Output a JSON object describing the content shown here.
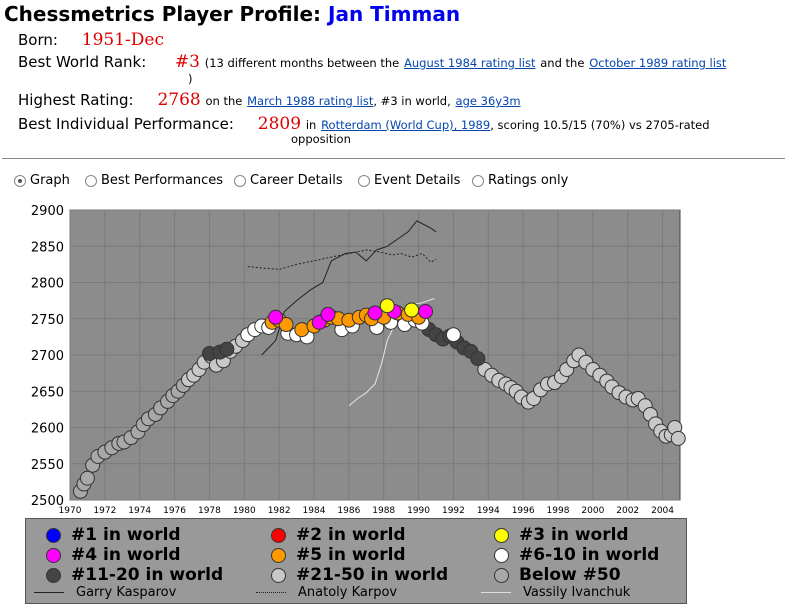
{
  "header": {
    "title_prefix": "Chessmetrics Player Profile:",
    "player_name": "Jan Timman"
  },
  "profile": {
    "born_label": "Born:",
    "born_value": "1951-Dec",
    "rank_label": "Best World Rank:",
    "rank_value": "#3",
    "rank_text1": "(13 different months between the",
    "rank_link1": "August 1984 rating list",
    "rank_text2": "and the",
    "rank_link2": "October 1989 rating list",
    "rank_text3": ")",
    "rating_label": "Highest Rating:",
    "rating_value": "2768",
    "rating_text1": "on the",
    "rating_link1": "March 1988 rating list",
    "rating_text2": ", #3 in world,",
    "rating_link2": "age 36y3m",
    "perf_label": "Best Individual Performance:",
    "perf_value": "2809",
    "perf_text1": "in",
    "perf_link1": "Rotterdam (World Cup), 1989",
    "perf_text2": ", scoring 10.5/15 (70%) vs 2705-rated",
    "perf_text3": "opposition"
  },
  "tabs": {
    "graph": "Graph",
    "best": "Best Performances",
    "career": "Career Details",
    "event": "Event Details",
    "ratings": "Ratings only",
    "selected": "Graph"
  },
  "colors": {
    "plot_bg": "#8c8c8c",
    "rank1": "#0000ff",
    "rank2": "#ff0000",
    "rank3": "#ffff00",
    "rank4": "#ff00ff",
    "rank5": "#ff9900",
    "rank6_10": "#ffffff",
    "rank11_20": "#444444",
    "rank21_50": "#c8c8c8",
    "below50": "#a8a8a8"
  },
  "legend": {
    "r1": "#1 in world",
    "r2": "#2 in world",
    "r3": "#3 in world",
    "r4": "#4 in world",
    "r5": "#5 in world",
    "r6": "#6-10 in world",
    "r11": "#11-20 in world",
    "r21": "#21-50 in world",
    "rb": "Below #50",
    "kasparov": "Garry Kasparov",
    "karpov": "Anatoly Karpov",
    "ivanchuk": "Vassily Ivanchuk"
  },
  "chart_data": {
    "type": "scatter",
    "xlim": [
      1970,
      2005
    ],
    "ylim": [
      2500,
      2900
    ],
    "x_ticks": [
      "1970",
      "1972",
      "1974",
      "1976",
      "1978",
      "1980",
      "1982",
      "1984",
      "1986",
      "1988",
      "1990",
      "1992",
      "1994",
      "1996",
      "1998",
      "2000",
      "2002",
      "2004"
    ],
    "y_ticks": [
      "2500",
      "2550",
      "2600",
      "2650",
      "2700",
      "2750",
      "2800",
      "2850",
      "2900"
    ],
    "grid": true,
    "series": [
      {
        "name": "Below #50",
        "color": "#a8a8a8",
        "points": [
          [
            1970.6,
            2512
          ],
          [
            1970.8,
            2522
          ],
          [
            1971.0,
            2530
          ],
          [
            1971.3,
            2548
          ],
          [
            1971.6,
            2560
          ],
          [
            1972.0,
            2566
          ],
          [
            1972.4,
            2572
          ],
          [
            1972.8,
            2578
          ],
          [
            1973.1,
            2580
          ],
          [
            1973.5,
            2586
          ],
          [
            1973.9,
            2594
          ],
          [
            1974.2,
            2604
          ],
          [
            1974.5,
            2612
          ],
          [
            1974.9,
            2618
          ],
          [
            1975.2,
            2627
          ],
          [
            1975.6,
            2636
          ],
          [
            1975.9,
            2644
          ],
          [
            1976.2,
            2650
          ],
          [
            1976.5,
            2658
          ]
        ]
      },
      {
        "name": "#21-50 in world",
        "color": "#c8c8c8",
        "points": [
          [
            1976.8,
            2666
          ],
          [
            1977.1,
            2672
          ],
          [
            1977.4,
            2680
          ],
          [
            1977.7,
            2690
          ],
          [
            1978.1,
            2698
          ],
          [
            1978.4,
            2686
          ],
          [
            1978.8,
            2692
          ],
          [
            1979.2,
            2705
          ],
          [
            1979.5,
            2712
          ],
          [
            1979.9,
            2720
          ],
          [
            1993.8,
            2680
          ],
          [
            1994.2,
            2672
          ],
          [
            1994.6,
            2665
          ],
          [
            1995.0,
            2660
          ],
          [
            1995.3,
            2655
          ],
          [
            1995.6,
            2650
          ],
          [
            1995.9,
            2642
          ],
          [
            1996.3,
            2635
          ],
          [
            1996.6,
            2640
          ],
          [
            1997.0,
            2652
          ],
          [
            1997.4,
            2660
          ],
          [
            1997.8,
            2662
          ],
          [
            1998.2,
            2670
          ],
          [
            1998.5,
            2680
          ],
          [
            1998.9,
            2692
          ],
          [
            1999.2,
            2700
          ],
          [
            1999.6,
            2690
          ],
          [
            2000.0,
            2680
          ],
          [
            2000.4,
            2672
          ],
          [
            2000.8,
            2664
          ],
          [
            2001.1,
            2656
          ],
          [
            2001.5,
            2648
          ],
          [
            2001.9,
            2642
          ],
          [
            2002.3,
            2638
          ],
          [
            2002.6,
            2640
          ],
          [
            2003.0,
            2630
          ],
          [
            2003.3,
            2618
          ],
          [
            2003.6,
            2605
          ],
          [
            2003.9,
            2595
          ],
          [
            2004.2,
            2588
          ],
          [
            2004.5,
            2590
          ],
          [
            2004.7,
            2600
          ],
          [
            2004.9,
            2585
          ]
        ]
      },
      {
        "name": "#11-20 in world",
        "color": "#444444",
        "points": [
          [
            1978.0,
            2702
          ],
          [
            1978.6,
            2704
          ],
          [
            1979.0,
            2708
          ],
          [
            1990.6,
            2735
          ],
          [
            1991.0,
            2728
          ],
          [
            1991.4,
            2722
          ],
          [
            1991.8,
            2726
          ],
          [
            1992.2,
            2718
          ],
          [
            1992.6,
            2710
          ],
          [
            1993.0,
            2705
          ],
          [
            1993.4,
            2695
          ]
        ]
      },
      {
        "name": "#6-10 in world",
        "color": "#ffffff",
        "points": [
          [
            1980.2,
            2728
          ],
          [
            1980.6,
            2735
          ],
          [
            1981.0,
            2740
          ],
          [
            1981.4,
            2738
          ],
          [
            1982.5,
            2730
          ],
          [
            1983.0,
            2728
          ],
          [
            1983.6,
            2725
          ],
          [
            1985.6,
            2735
          ],
          [
            1986.2,
            2740
          ],
          [
            1987.6,
            2738
          ],
          [
            1988.4,
            2745
          ],
          [
            1989.2,
            2742
          ],
          [
            1989.8,
            2748
          ],
          [
            1990.2,
            2744
          ],
          [
            1992.0,
            2728
          ]
        ]
      },
      {
        "name": "#5 in world",
        "color": "#ff9900",
        "points": [
          [
            1981.6,
            2745
          ],
          [
            1982.0,
            2748
          ],
          [
            1982.4,
            2742
          ],
          [
            1983.3,
            2735
          ],
          [
            1984.0,
            2740
          ],
          [
            1984.6,
            2748
          ],
          [
            1985.0,
            2752
          ],
          [
            1985.4,
            2750
          ],
          [
            1986.0,
            2748
          ],
          [
            1986.6,
            2752
          ],
          [
            1987.0,
            2755
          ],
          [
            1987.3,
            2750
          ],
          [
            1988.0,
            2752
          ],
          [
            1988.8,
            2758
          ],
          [
            1989.4,
            2756
          ],
          [
            1990.0,
            2752
          ]
        ]
      },
      {
        "name": "#4 in world",
        "color": "#ff00ff",
        "points": [
          [
            1981.8,
            2752
          ],
          [
            1984.3,
            2745
          ],
          [
            1984.8,
            2756
          ],
          [
            1987.5,
            2758
          ],
          [
            1988.6,
            2760
          ],
          [
            1990.4,
            2760
          ]
        ]
      },
      {
        "name": "#3 in world",
        "color": "#ffff00",
        "points": [
          [
            1988.2,
            2768
          ],
          [
            1989.6,
            2762
          ]
        ]
      }
    ],
    "lines": [
      {
        "name": "Garry Kasparov",
        "style": "solid",
        "points": [
          [
            1981.0,
            2700
          ],
          [
            1981.8,
            2720
          ],
          [
            1982.3,
            2760
          ],
          [
            1983.0,
            2775
          ],
          [
            1983.8,
            2790
          ],
          [
            1984.5,
            2800
          ],
          [
            1985.0,
            2830
          ],
          [
            1985.8,
            2840
          ],
          [
            1986.4,
            2842
          ],
          [
            1987.0,
            2830
          ],
          [
            1987.6,
            2845
          ],
          [
            1988.2,
            2850
          ],
          [
            1988.8,
            2860
          ],
          [
            1989.4,
            2870
          ],
          [
            1989.9,
            2885
          ],
          [
            1990.3,
            2880
          ],
          [
            1990.7,
            2875
          ],
          [
            1991.0,
            2870
          ]
        ]
      },
      {
        "name": "Anatoly Karpov",
        "style": "dotted",
        "points": [
          [
            1980.2,
            2822
          ],
          [
            1981.0,
            2820
          ],
          [
            1982.0,
            2818
          ],
          [
            1983.0,
            2825
          ],
          [
            1984.0,
            2830
          ],
          [
            1985.0,
            2835
          ],
          [
            1986.0,
            2840
          ],
          [
            1987.0,
            2845
          ],
          [
            1987.8,
            2842
          ],
          [
            1988.5,
            2838
          ],
          [
            1989.0,
            2840
          ],
          [
            1989.6,
            2835
          ],
          [
            1990.2,
            2840
          ],
          [
            1990.7,
            2828
          ],
          [
            1991.0,
            2832
          ]
        ]
      },
      {
        "name": "Vassily Ivanchuk",
        "style": "solid-light",
        "points": [
          [
            1986.0,
            2630
          ],
          [
            1986.5,
            2640
          ],
          [
            1987.0,
            2648
          ],
          [
            1987.5,
            2660
          ],
          [
            1987.9,
            2690
          ],
          [
            1988.2,
            2720
          ],
          [
            1988.7,
            2745
          ],
          [
            1989.2,
            2760
          ],
          [
            1989.7,
            2770
          ],
          [
            1990.2,
            2772
          ],
          [
            1990.9,
            2778
          ]
        ]
      }
    ]
  }
}
